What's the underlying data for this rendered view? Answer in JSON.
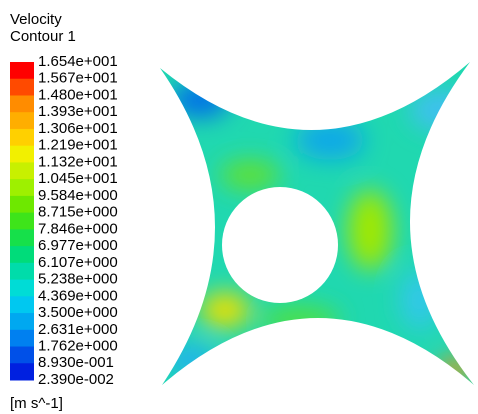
{
  "title": "Velocity",
  "subtitle": "Contour 1",
  "legend": {
    "levels": [
      "1.654e+001",
      "1.567e+001",
      "1.480e+001",
      "1.393e+001",
      "1.306e+001",
      "1.219e+001",
      "1.132e+001",
      "1.045e+001",
      "9.584e+000",
      "8.715e+000",
      "7.846e+000",
      "6.977e+000",
      "6.107e+000",
      "5.238e+000",
      "4.369e+000",
      "3.500e+000",
      "2.631e+000",
      "1.762e+000",
      "8.930e-001",
      "2.390e-002"
    ],
    "colors": [
      "#ff0000",
      "#ff4a00",
      "#ff8c00",
      "#ffae00",
      "#ffd000",
      "#f2f000",
      "#c8f000",
      "#9ef000",
      "#6ee800",
      "#3ee41a",
      "#16e04a",
      "#00dc7a",
      "#00dcaa",
      "#00dcd6",
      "#00c8f0",
      "#00a8f0",
      "#0080f0",
      "#0050e8",
      "#0020e0"
    ]
  },
  "unit": "[m s^-1]"
}
